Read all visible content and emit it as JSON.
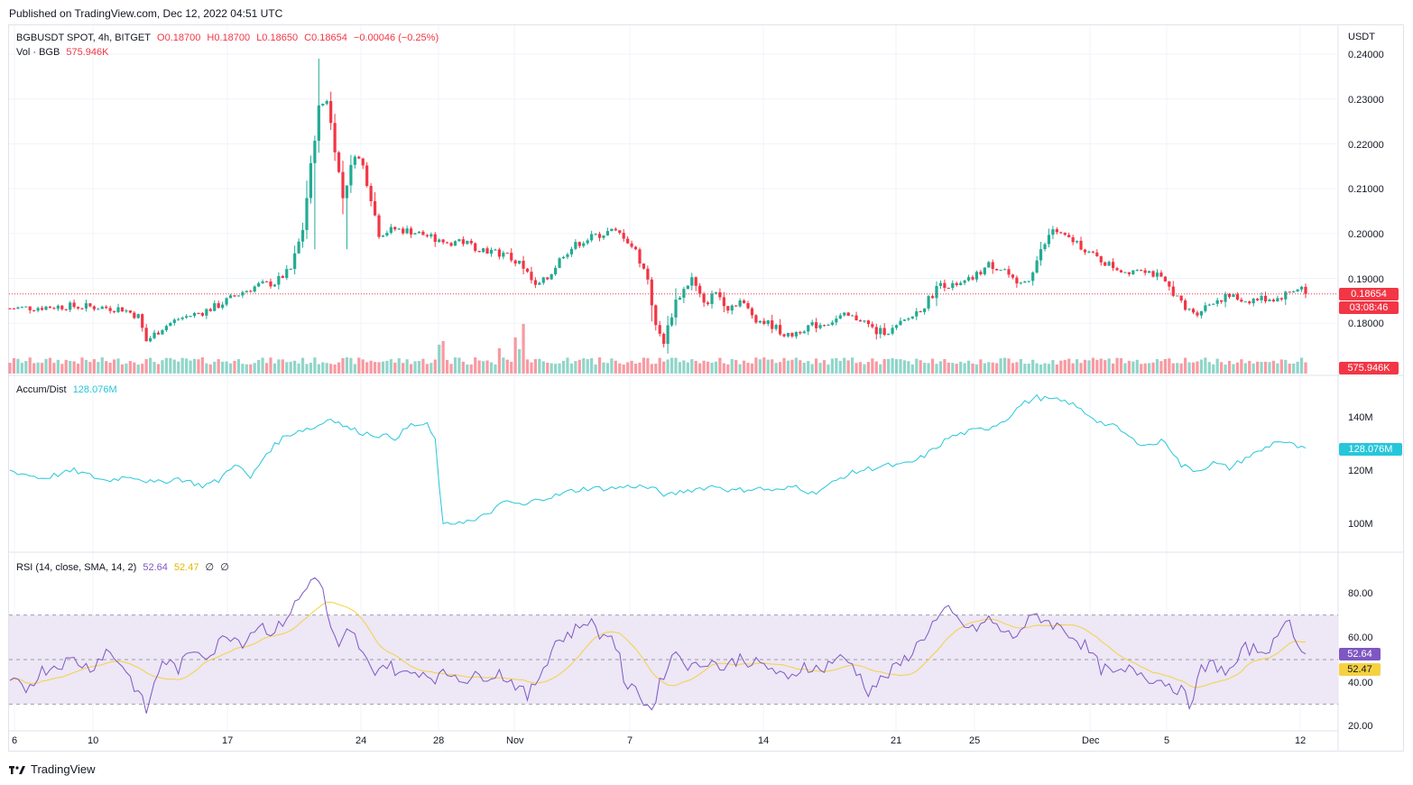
{
  "published": "Published on TradingView.com, Dec 12, 2022 04:51 UTC",
  "brand": "TradingView",
  "legend": {
    "symbol": "BGBUSDT SPOT, 4h, BITGET",
    "open": "O0.18700",
    "high": "H0.18700",
    "low": "L0.18650",
    "close": "C0.18654",
    "change": "−0.00046 (−0.25%)",
    "vol_label": "Vol · BGB",
    "vol_value": "575.946K",
    "ad_label": "Accum/Dist",
    "ad_value": "128.076M",
    "rsi_label": "RSI (14, close, SMA, 14, 2)",
    "rsi_value": "52.64",
    "rsi_sma": "52.47",
    "rsi_extra1": "∅",
    "rsi_extra2": "∅"
  },
  "price_axis": {
    "currency": "USDT",
    "ticks": [
      "0.24000",
      "0.23000",
      "0.22000",
      "0.21000",
      "0.20000",
      "0.19000",
      "0.18000"
    ],
    "last_price": "0.18654",
    "countdown": "03:08:46",
    "volume_tag": "575.946K"
  },
  "ad_axis": {
    "ticks": [
      "140M",
      "120M",
      "100M"
    ],
    "current": "128.076M"
  },
  "rsi_axis": {
    "ticks": [
      "80.00",
      "60.00",
      "40.00",
      "20.00"
    ],
    "current": "52.64",
    "sma": "52.47"
  },
  "time_axis": [
    "6",
    "10",
    "17",
    "24",
    "28",
    "Nov",
    "7",
    "14",
    "21",
    "25",
    "Dec",
    "5",
    "12"
  ],
  "colors": {
    "up": "#22ab94",
    "down": "#f23645",
    "ad": "#26c6da",
    "rsi": "#7e57c2",
    "rsi_sma": "#f5d142",
    "rsi_band": "#ede7f6"
  },
  "chart_data": {
    "type": "candlestick",
    "interval": "4h",
    "price_range": [
      0.175,
      0.243
    ],
    "price_path": [
      [
        0,
        0.1833
      ],
      [
        6,
        0.1835
      ],
      [
        14,
        0.1838
      ],
      [
        22,
        0.1836
      ],
      [
        28,
        0.1832
      ],
      [
        32,
        0.1815
      ],
      [
        34,
        0.176
      ],
      [
        38,
        0.179
      ],
      [
        42,
        0.181
      ],
      [
        48,
        0.1825
      ],
      [
        52,
        0.184
      ],
      [
        58,
        0.187
      ],
      [
        62,
        0.1885
      ],
      [
        66,
        0.189
      ],
      [
        70,
        0.192
      ],
      [
        73,
        0.201
      ],
      [
        75,
        0.215
      ],
      [
        77,
        0.228
      ],
      [
        79,
        0.23
      ],
      [
        81,
        0.219
      ],
      [
        83,
        0.208
      ],
      [
        86,
        0.218
      ],
      [
        88,
        0.215
      ],
      [
        90,
        0.208
      ],
      [
        92,
        0.2
      ],
      [
        96,
        0.201
      ],
      [
        100,
        0.2005
      ],
      [
        104,
        0.1995
      ],
      [
        108,
        0.1975
      ],
      [
        112,
        0.1985
      ],
      [
        116,
        0.197
      ],
      [
        120,
        0.196
      ],
      [
        124,
        0.195
      ],
      [
        128,
        0.1925
      ],
      [
        131,
        0.188
      ],
      [
        134,
        0.19
      ],
      [
        138,
        0.1955
      ],
      [
        142,
        0.198
      ],
      [
        146,
        0.1995
      ],
      [
        150,
        0.2005
      ],
      [
        153,
        0.1995
      ],
      [
        156,
        0.196
      ],
      [
        159,
        0.19
      ],
      [
        161,
        0.179
      ],
      [
        163,
        0.176
      ],
      [
        166,
        0.185
      ],
      [
        170,
        0.19
      ],
      [
        173,
        0.184
      ],
      [
        176,
        0.187
      ],
      [
        179,
        0.1835
      ],
      [
        182,
        0.185
      ],
      [
        186,
        0.181
      ],
      [
        190,
        0.1795
      ],
      [
        194,
        0.177
      ],
      [
        198,
        0.179
      ],
      [
        203,
        0.18
      ],
      [
        208,
        0.1815
      ],
      [
        212,
        0.181
      ],
      [
        216,
        0.178
      ],
      [
        220,
        0.1785
      ],
      [
        224,
        0.181
      ],
      [
        228,
        0.184
      ],
      [
        232,
        0.189
      ],
      [
        236,
        0.188
      ],
      [
        240,
        0.19
      ],
      [
        244,
        0.193
      ],
      [
        248,
        0.192
      ],
      [
        251,
        0.188
      ],
      [
        254,
        0.19
      ],
      [
        257,
        0.196
      ],
      [
        260,
        0.201
      ],
      [
        263,
        0.199
      ],
      [
        266,
        0.198
      ],
      [
        270,
        0.195
      ],
      [
        274,
        0.193
      ],
      [
        278,
        0.1915
      ],
      [
        282,
        0.1925
      ],
      [
        286,
        0.1905
      ],
      [
        290,
        0.187
      ],
      [
        293,
        0.183
      ],
      [
        296,
        0.1825
      ],
      [
        300,
        0.185
      ],
      [
        304,
        0.186
      ],
      [
        308,
        0.185
      ],
      [
        312,
        0.1855
      ],
      [
        316,
        0.1855
      ],
      [
        320,
        0.1875
      ],
      [
        322,
        0.188
      ],
      [
        323,
        0.1865
      ]
    ],
    "rsi_path": [
      [
        0,
        40
      ],
      [
        4,
        37
      ],
      [
        8,
        45
      ],
      [
        12,
        48
      ],
      [
        16,
        50
      ],
      [
        20,
        46
      ],
      [
        24,
        54
      ],
      [
        28,
        48
      ],
      [
        32,
        35
      ],
      [
        34,
        27
      ],
      [
        38,
        50
      ],
      [
        42,
        46
      ],
      [
        46,
        55
      ],
      [
        50,
        52
      ],
      [
        54,
        62
      ],
      [
        58,
        58
      ],
      [
        62,
        66
      ],
      [
        66,
        62
      ],
      [
        70,
        72
      ],
      [
        74,
        82
      ],
      [
        76,
        89
      ],
      [
        78,
        80
      ],
      [
        80,
        64
      ],
      [
        82,
        54
      ],
      [
        84,
        62
      ],
      [
        86,
        60
      ],
      [
        88,
        52
      ],
      [
        90,
        45
      ],
      [
        94,
        48
      ],
      [
        98,
        43
      ],
      [
        102,
        45
      ],
      [
        106,
        42
      ],
      [
        110,
        44
      ],
      [
        114,
        41
      ],
      [
        118,
        43
      ],
      [
        122,
        44
      ],
      [
        126,
        39
      ],
      [
        129,
        33
      ],
      [
        132,
        43
      ],
      [
        136,
        58
      ],
      [
        140,
        62
      ],
      [
        144,
        68
      ],
      [
        146,
        64
      ],
      [
        148,
        60
      ],
      [
        150,
        62
      ],
      [
        152,
        50
      ],
      [
        154,
        34
      ],
      [
        156,
        40
      ],
      [
        158,
        30
      ],
      [
        160,
        28
      ],
      [
        163,
        44
      ],
      [
        166,
        54
      ],
      [
        170,
        46
      ],
      [
        174,
        50
      ],
      [
        178,
        46
      ],
      [
        182,
        51
      ],
      [
        186,
        48
      ],
      [
        190,
        46
      ],
      [
        194,
        40
      ],
      [
        198,
        48
      ],
      [
        202,
        45
      ],
      [
        206,
        51
      ],
      [
        210,
        48
      ],
      [
        214,
        36
      ],
      [
        218,
        42
      ],
      [
        222,
        48
      ],
      [
        226,
        56
      ],
      [
        230,
        66
      ],
      [
        234,
        72
      ],
      [
        236,
        68
      ],
      [
        240,
        63
      ],
      [
        244,
        68
      ],
      [
        248,
        62
      ],
      [
        250,
        60
      ],
      [
        252,
        64
      ],
      [
        256,
        70
      ],
      [
        260,
        66
      ],
      [
        264,
        62
      ],
      [
        268,
        56
      ],
      [
        272,
        46
      ],
      [
        276,
        43
      ],
      [
        280,
        46
      ],
      [
        284,
        42
      ],
      [
        288,
        40
      ],
      [
        292,
        36
      ],
      [
        294,
        30
      ],
      [
        297,
        45
      ],
      [
        300,
        48
      ],
      [
        304,
        44
      ],
      [
        308,
        55
      ],
      [
        312,
        54
      ],
      [
        316,
        58
      ],
      [
        318,
        70
      ],
      [
        320,
        62
      ],
      [
        323,
        52.64
      ]
    ],
    "rsi_sma_range": [
      40,
      75
    ],
    "ad_path": [
      [
        0,
        120
      ],
      [
        8,
        117
      ],
      [
        16,
        120
      ],
      [
        24,
        116
      ],
      [
        30,
        118
      ],
      [
        36,
        115
      ],
      [
        42,
        117
      ],
      [
        48,
        114
      ],
      [
        52,
        116
      ],
      [
        56,
        123
      ],
      [
        60,
        117
      ],
      [
        64,
        127
      ],
      [
        68,
        133
      ],
      [
        72,
        136
      ],
      [
        76,
        137
      ],
      [
        80,
        141
      ],
      [
        84,
        137
      ],
      [
        88,
        135
      ],
      [
        92,
        134
      ],
      [
        96,
        133
      ],
      [
        100,
        138
      ],
      [
        104,
        138
      ],
      [
        106,
        132
      ],
      [
        108,
        98
      ],
      [
        112,
        100
      ],
      [
        116,
        100
      ],
      [
        120,
        104
      ],
      [
        124,
        108
      ],
      [
        128,
        106
      ],
      [
        132,
        109
      ],
      [
        136,
        110
      ],
      [
        140,
        112
      ],
      [
        144,
        113
      ],
      [
        150,
        113
      ],
      [
        156,
        114
      ],
      [
        160,
        113
      ],
      [
        164,
        110
      ],
      [
        168,
        112
      ],
      [
        172,
        113
      ],
      [
        176,
        114
      ],
      [
        180,
        112
      ],
      [
        186,
        113
      ],
      [
        192,
        112
      ],
      [
        196,
        114
      ],
      [
        200,
        111
      ],
      [
        204,
        114
      ],
      [
        208,
        118
      ],
      [
        212,
        120
      ],
      [
        218,
        122
      ],
      [
        222,
        122
      ],
      [
        226,
        124
      ],
      [
        230,
        128
      ],
      [
        234,
        133
      ],
      [
        238,
        135
      ],
      [
        244,
        137
      ],
      [
        248,
        140
      ],
      [
        252,
        146
      ],
      [
        256,
        149
      ],
      [
        260,
        148
      ],
      [
        264,
        147
      ],
      [
        268,
        143
      ],
      [
        272,
        139
      ],
      [
        276,
        137
      ],
      [
        280,
        132
      ],
      [
        284,
        130
      ],
      [
        288,
        132
      ],
      [
        292,
        122
      ],
      [
        296,
        120
      ],
      [
        300,
        123
      ],
      [
        304,
        121
      ],
      [
        308,
        125
      ],
      [
        312,
        128
      ],
      [
        316,
        132
      ],
      [
        320,
        130
      ],
      [
        323,
        128.076
      ]
    ],
    "ad_range": [
      92,
      152
    ],
    "volume_spikes": [
      [
        107,
        3.2
      ],
      [
        108,
        3.6
      ],
      [
        122,
        2.8
      ],
      [
        126,
        4.0
      ],
      [
        127,
        2.7
      ],
      [
        128,
        5.5
      ]
    ]
  }
}
